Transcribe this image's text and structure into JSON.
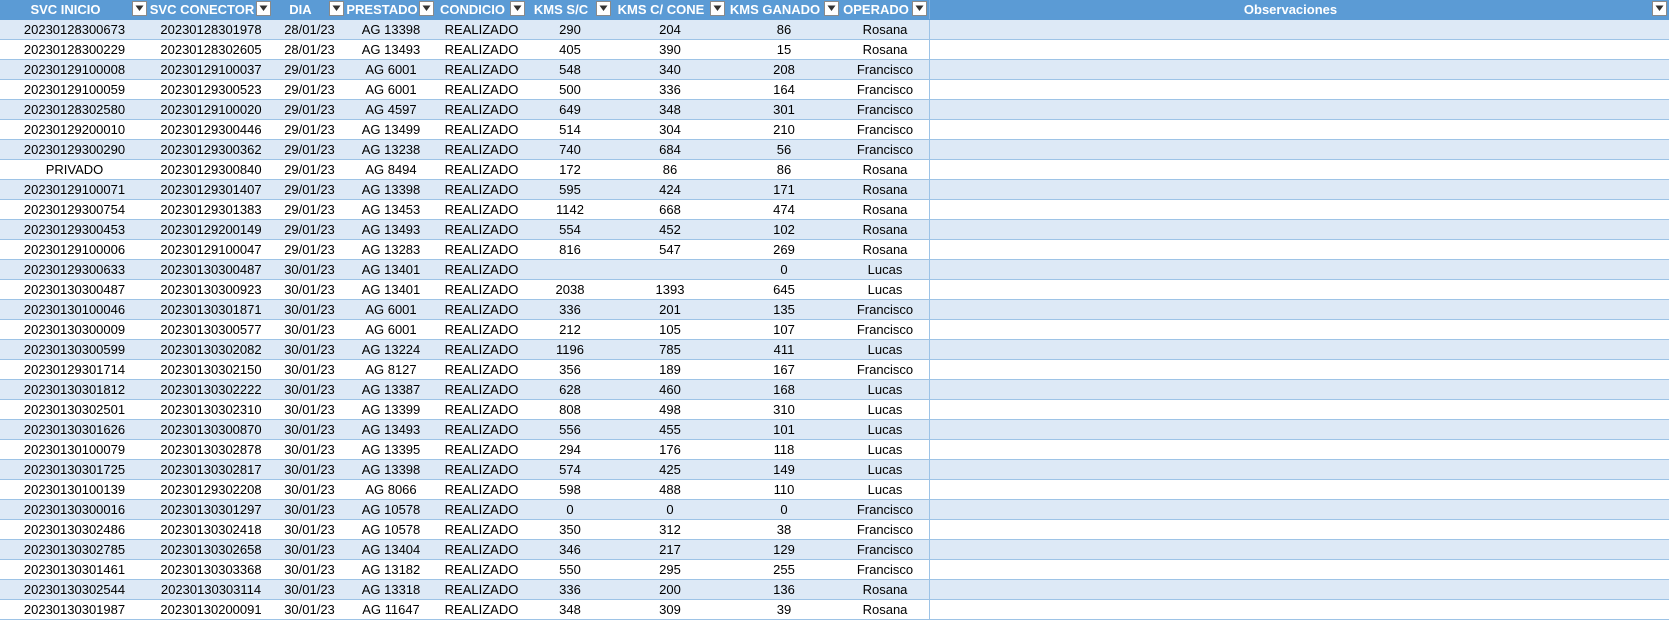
{
  "columns": [
    {
      "label": "SVC INICIO"
    },
    {
      "label": "SVC CONECTOR"
    },
    {
      "label": "DIA"
    },
    {
      "label": "PRESTADO"
    },
    {
      "label": "CONDICIO"
    },
    {
      "label": "KMS S/C"
    },
    {
      "label": "KMS C/ CONE"
    },
    {
      "label": "KMS GANADO"
    },
    {
      "label": "OPERADO"
    },
    {
      "label": "Observaciones"
    }
  ],
  "rows": [
    [
      "20230128300673",
      "20230128301978",
      "28/01/23",
      "AG 13398",
      "REALIZADO",
      "290",
      "204",
      "86",
      "Rosana"
    ],
    [
      "20230128300229",
      "20230128302605",
      "28/01/23",
      "AG 13493",
      "REALIZADO",
      "405",
      "390",
      "15",
      "Rosana"
    ],
    [
      "20230129100008",
      "20230129100037",
      "29/01/23",
      "AG 6001",
      "REALIZADO",
      "548",
      "340",
      "208",
      "Francisco"
    ],
    [
      "20230129100059",
      "20230129300523",
      "29/01/23",
      "AG 6001",
      "REALIZADO",
      "500",
      "336",
      "164",
      "Francisco"
    ],
    [
      "20230128302580",
      "20230129100020",
      "29/01/23",
      "AG 4597",
      "REALIZADO",
      "649",
      "348",
      "301",
      "Francisco"
    ],
    [
      "20230129200010",
      "20230129300446",
      "29/01/23",
      "AG 13499",
      "REALIZADO",
      "514",
      "304",
      "210",
      "Francisco"
    ],
    [
      "20230129300290",
      "20230129300362",
      "29/01/23",
      "AG 13238",
      "REALIZADO",
      "740",
      "684",
      "56",
      "Francisco"
    ],
    [
      "PRIVADO",
      "20230129300840",
      "29/01/23",
      "AG 8494",
      "REALIZADO",
      "172",
      "86",
      "86",
      "Rosana"
    ],
    [
      "20230129100071",
      "20230129301407",
      "29/01/23",
      "AG 13398",
      "REALIZADO",
      "595",
      "424",
      "171",
      "Rosana"
    ],
    [
      "20230129300754",
      "20230129301383",
      "29/01/23",
      "AG 13453",
      "REALIZADO",
      "1142",
      "668",
      "474",
      "Rosana"
    ],
    [
      "20230129300453",
      "20230129200149",
      "29/01/23",
      "AG 13493",
      "REALIZADO",
      "554",
      "452",
      "102",
      "Rosana"
    ],
    [
      "20230129100006",
      "20230129100047",
      "29/01/23",
      "AG 13283",
      "REALIZADO",
      "816",
      "547",
      "269",
      "Rosana"
    ],
    [
      "20230129300633",
      "20230130300487",
      "30/01/23",
      "AG 13401",
      "REALIZADO",
      "",
      "",
      "0",
      "Lucas"
    ],
    [
      "20230130300487",
      "20230130300923",
      "30/01/23",
      "AG 13401",
      "REALIZADO",
      "2038",
      "1393",
      "645",
      "Lucas"
    ],
    [
      "20230130100046",
      "20230130301871",
      "30/01/23",
      "AG 6001",
      "REALIZADO",
      "336",
      "201",
      "135",
      "Francisco"
    ],
    [
      "20230130300009",
      "20230130300577",
      "30/01/23",
      "AG 6001",
      "REALIZADO",
      "212",
      "105",
      "107",
      "Francisco"
    ],
    [
      "20230130300599",
      "20230130302082",
      "30/01/23",
      "AG 13224",
      "REALIZADO",
      "1196",
      "785",
      "411",
      "Lucas"
    ],
    [
      "20230129301714",
      "20230130302150",
      "30/01/23",
      "AG 8127",
      "REALIZADO",
      "356",
      "189",
      "167",
      "Francisco"
    ],
    [
      "20230130301812",
      "20230130302222",
      "30/01/23",
      "AG 13387",
      "REALIZADO",
      "628",
      "460",
      "168",
      "Lucas"
    ],
    [
      "20230130302501",
      "20230130302310",
      "30/01/23",
      "AG 13399",
      "REALIZADO",
      "808",
      "498",
      "310",
      "Lucas"
    ],
    [
      "20230130301626",
      "20230130300870",
      "30/01/23",
      "AG 13493",
      "REALIZADO",
      "556",
      "455",
      "101",
      "Lucas"
    ],
    [
      "20230130100079",
      "20230130302878",
      "30/01/23",
      "AG 13395",
      "REALIZADO",
      "294",
      "176",
      "118",
      "Lucas"
    ],
    [
      "20230130301725",
      "20230130302817",
      "30/01/23",
      "AG 13398",
      "REALIZADO",
      "574",
      "425",
      "149",
      "Lucas"
    ],
    [
      "20230130100139",
      "20230129302208",
      "30/01/23",
      "AG 8066",
      "REALIZADO",
      "598",
      "488",
      "110",
      "Lucas"
    ],
    [
      "20230130300016",
      "20230130301297",
      "30/01/23",
      "AG 10578",
      "REALIZADO",
      "0",
      "0",
      "0",
      "Francisco"
    ],
    [
      "20230130302486",
      "20230130302418",
      "30/01/23",
      "AG 10578",
      "REALIZADO",
      "350",
      "312",
      "38",
      "Francisco"
    ],
    [
      "20230130302785",
      "20230130302658",
      "30/01/23",
      "AG 13404",
      "REALIZADO",
      "346",
      "217",
      "129",
      "Francisco"
    ],
    [
      "20230130301461",
      "20230130303368",
      "30/01/23",
      "AG 13182",
      "REALIZADO",
      "550",
      "295",
      "255",
      "Francisco"
    ],
    [
      "20230130302544",
      "20230130303114",
      "30/01/23",
      "AG 13318",
      "REALIZADO",
      "336",
      "200",
      "136",
      "Rosana"
    ],
    [
      "20230130301987",
      "20230130200091",
      "30/01/23",
      "AG 11647",
      "REALIZADO",
      "348",
      "309",
      "39",
      "Rosana"
    ]
  ],
  "icons": {
    "filter": "filter-dropdown-icon"
  },
  "colors": {
    "header_bg": "#5b9bd5",
    "band_bg": "#dde9f6",
    "plain_bg": "#ffffff",
    "grid_line": "#9dc3e6"
  }
}
